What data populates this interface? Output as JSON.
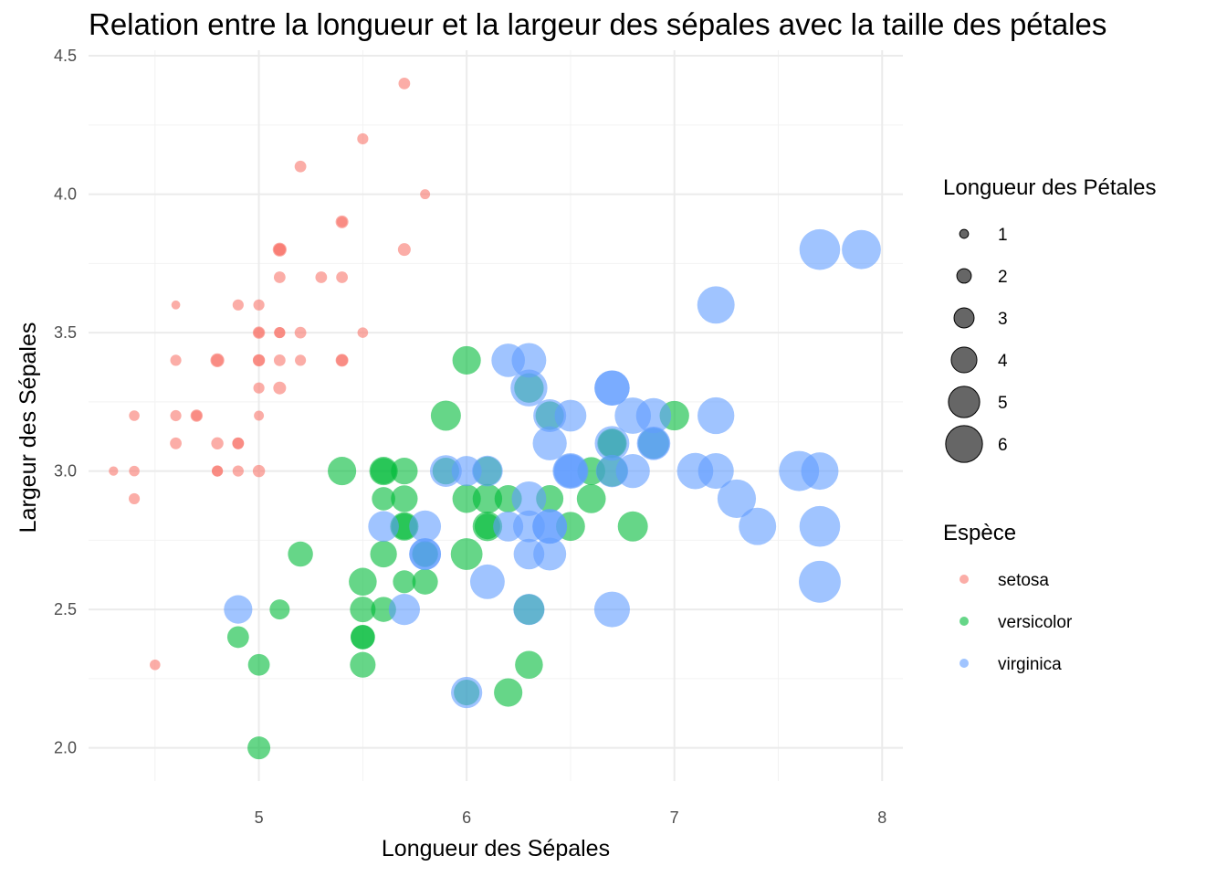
{
  "chart_data": {
    "type": "scatter",
    "title": "Relation entre la longueur et la largeur des sépales avec la taille des pétales",
    "xlabel": "Longueur des Sépales",
    "ylabel": "Largeur des Sépales",
    "xlim": [
      4.18,
      8.1
    ],
    "ylim": [
      1.88,
      4.52
    ],
    "x_ticks": [
      5,
      6,
      7,
      8
    ],
    "y_ticks": [
      2.0,
      2.5,
      3.0,
      3.5,
      4.0,
      4.5
    ],
    "x_tick_labels": [
      "5",
      "6",
      "7",
      "8"
    ],
    "y_tick_labels": [
      "2.0",
      "2.5",
      "3.0",
      "3.5",
      "4.0",
      "4.5"
    ],
    "grid": true,
    "legend_position": "right",
    "size_legend": {
      "title": "Longueur des Pétales",
      "levels": [
        1,
        2,
        3,
        4,
        5,
        6
      ],
      "labels": [
        "1",
        "2",
        "3",
        "4",
        "5",
        "6"
      ]
    },
    "color_legend": {
      "title": "Espèce",
      "entries": [
        "setosa",
        "versicolor",
        "virginica"
      ]
    },
    "colors": {
      "setosa": "#F8766D",
      "versicolor": "#00BA38",
      "virginica": "#619CFF"
    },
    "series": [
      {
        "name": "setosa",
        "points": [
          [
            5.1,
            3.5,
            1.4
          ],
          [
            4.9,
            3.0,
            1.4
          ],
          [
            4.7,
            3.2,
            1.3
          ],
          [
            4.6,
            3.1,
            1.5
          ],
          [
            5.0,
            3.6,
            1.4
          ],
          [
            5.4,
            3.9,
            1.7
          ],
          [
            4.6,
            3.4,
            1.4
          ],
          [
            5.0,
            3.4,
            1.5
          ],
          [
            4.4,
            2.9,
            1.4
          ],
          [
            4.9,
            3.1,
            1.5
          ],
          [
            5.4,
            3.7,
            1.5
          ],
          [
            4.8,
            3.4,
            1.6
          ],
          [
            4.8,
            3.0,
            1.4
          ],
          [
            4.3,
            3.0,
            1.1
          ],
          [
            5.8,
            4.0,
            1.2
          ],
          [
            5.7,
            4.4,
            1.5
          ],
          [
            5.4,
            3.9,
            1.3
          ],
          [
            5.1,
            3.5,
            1.4
          ],
          [
            5.7,
            3.8,
            1.7
          ],
          [
            5.1,
            3.8,
            1.5
          ],
          [
            5.4,
            3.4,
            1.7
          ],
          [
            5.1,
            3.7,
            1.5
          ],
          [
            4.6,
            3.6,
            1.0
          ],
          [
            5.1,
            3.3,
            1.7
          ],
          [
            4.8,
            3.4,
            1.9
          ],
          [
            5.0,
            3.0,
            1.6
          ],
          [
            5.0,
            3.4,
            1.6
          ],
          [
            5.2,
            3.5,
            1.5
          ],
          [
            5.2,
            3.4,
            1.4
          ],
          [
            4.7,
            3.2,
            1.6
          ],
          [
            4.8,
            3.1,
            1.6
          ],
          [
            5.4,
            3.4,
            1.5
          ],
          [
            5.2,
            4.1,
            1.5
          ],
          [
            5.5,
            4.2,
            1.4
          ],
          [
            4.9,
            3.1,
            1.5
          ],
          [
            5.0,
            3.2,
            1.2
          ],
          [
            5.5,
            3.5,
            1.3
          ],
          [
            4.9,
            3.6,
            1.4
          ],
          [
            4.4,
            3.0,
            1.3
          ],
          [
            5.1,
            3.4,
            1.5
          ],
          [
            5.0,
            3.5,
            1.3
          ],
          [
            4.5,
            2.3,
            1.3
          ],
          [
            4.4,
            3.2,
            1.3
          ],
          [
            5.0,
            3.5,
            1.6
          ],
          [
            5.1,
            3.8,
            1.9
          ],
          [
            4.8,
            3.0,
            1.4
          ],
          [
            5.1,
            3.8,
            1.6
          ],
          [
            4.6,
            3.2,
            1.4
          ],
          [
            5.3,
            3.7,
            1.5
          ],
          [
            5.0,
            3.3,
            1.4
          ]
        ]
      },
      {
        "name": "versicolor",
        "points": [
          [
            7.0,
            3.2,
            4.7
          ],
          [
            6.4,
            3.2,
            4.5
          ],
          [
            6.9,
            3.1,
            4.9
          ],
          [
            5.5,
            2.3,
            4.0
          ],
          [
            6.5,
            2.8,
            4.6
          ],
          [
            5.7,
            2.8,
            4.5
          ],
          [
            6.3,
            3.3,
            4.7
          ],
          [
            4.9,
            2.4,
            3.3
          ],
          [
            6.6,
            2.9,
            4.6
          ],
          [
            5.2,
            2.7,
            3.9
          ],
          [
            5.0,
            2.0,
            3.5
          ],
          [
            5.9,
            3.0,
            4.2
          ],
          [
            6.0,
            2.2,
            4.0
          ],
          [
            6.1,
            2.9,
            4.7
          ],
          [
            5.6,
            2.9,
            3.6
          ],
          [
            6.7,
            3.1,
            4.4
          ],
          [
            5.6,
            3.0,
            4.5
          ],
          [
            5.8,
            2.7,
            4.1
          ],
          [
            6.2,
            2.2,
            4.5
          ],
          [
            5.6,
            2.5,
            3.9
          ],
          [
            5.9,
            3.2,
            4.8
          ],
          [
            6.1,
            2.8,
            4.0
          ],
          [
            6.3,
            2.5,
            4.9
          ],
          [
            6.1,
            2.8,
            4.7
          ],
          [
            6.4,
            2.9,
            4.3
          ],
          [
            6.6,
            3.0,
            4.4
          ],
          [
            6.8,
            2.8,
            4.8
          ],
          [
            6.7,
            3.0,
            5.0
          ],
          [
            6.0,
            2.9,
            4.5
          ],
          [
            5.7,
            2.6,
            3.5
          ],
          [
            5.5,
            2.4,
            3.8
          ],
          [
            5.5,
            2.4,
            3.7
          ],
          [
            5.8,
            2.7,
            3.9
          ],
          [
            6.0,
            2.7,
            5.1
          ],
          [
            5.4,
            3.0,
            4.5
          ],
          [
            6.0,
            3.4,
            4.5
          ],
          [
            6.7,
            3.1,
            4.7
          ],
          [
            6.3,
            2.3,
            4.4
          ],
          [
            5.6,
            3.0,
            4.1
          ],
          [
            5.5,
            2.5,
            4.0
          ],
          [
            5.5,
            2.6,
            4.4
          ],
          [
            6.1,
            3.0,
            4.6
          ],
          [
            5.8,
            2.6,
            4.0
          ],
          [
            5.0,
            2.3,
            3.3
          ],
          [
            5.6,
            2.7,
            4.2
          ],
          [
            5.7,
            3.0,
            4.2
          ],
          [
            5.7,
            2.9,
            4.2
          ],
          [
            6.2,
            2.9,
            4.3
          ],
          [
            5.1,
            2.5,
            3.0
          ],
          [
            5.7,
            2.8,
            4.1
          ]
        ]
      },
      {
        "name": "virginica",
        "points": [
          [
            6.3,
            3.3,
            6.0
          ],
          [
            5.8,
            2.7,
            5.1
          ],
          [
            7.1,
            3.0,
            5.9
          ],
          [
            6.3,
            2.9,
            5.6
          ],
          [
            6.5,
            3.0,
            5.8
          ],
          [
            7.6,
            3.0,
            6.6
          ],
          [
            4.9,
            2.5,
            4.5
          ],
          [
            7.3,
            2.9,
            6.3
          ],
          [
            6.7,
            2.5,
            5.8
          ],
          [
            7.2,
            3.6,
            6.1
          ],
          [
            6.5,
            3.2,
            5.1
          ],
          [
            6.4,
            2.7,
            5.3
          ],
          [
            6.8,
            3.0,
            5.5
          ],
          [
            5.7,
            2.5,
            5.0
          ],
          [
            5.8,
            2.8,
            5.1
          ],
          [
            6.4,
            3.2,
            5.3
          ],
          [
            6.5,
            3.0,
            5.5
          ],
          [
            7.7,
            3.8,
            6.7
          ],
          [
            7.7,
            2.6,
            6.9
          ],
          [
            6.0,
            2.2,
            5.0
          ],
          [
            6.9,
            3.2,
            5.7
          ],
          [
            5.6,
            2.8,
            4.9
          ],
          [
            7.7,
            2.8,
            6.7
          ],
          [
            6.3,
            2.7,
            4.9
          ],
          [
            6.7,
            3.3,
            5.7
          ],
          [
            7.2,
            3.2,
            6.0
          ],
          [
            6.2,
            2.8,
            4.8
          ],
          [
            6.1,
            3.0,
            4.9
          ],
          [
            6.4,
            2.8,
            5.6
          ],
          [
            7.2,
            3.0,
            5.8
          ],
          [
            7.4,
            2.8,
            6.1
          ],
          [
            7.9,
            3.8,
            6.4
          ],
          [
            6.4,
            2.8,
            5.6
          ],
          [
            6.3,
            2.8,
            5.1
          ],
          [
            6.1,
            2.6,
            5.6
          ],
          [
            7.7,
            3.0,
            6.1
          ],
          [
            6.3,
            3.4,
            5.6
          ],
          [
            6.4,
            3.1,
            5.5
          ],
          [
            6.0,
            3.0,
            4.8
          ],
          [
            6.9,
            3.1,
            5.4
          ],
          [
            6.7,
            3.1,
            5.6
          ],
          [
            6.9,
            3.1,
            5.1
          ],
          [
            5.8,
            2.7,
            5.1
          ],
          [
            6.8,
            3.2,
            5.9
          ],
          [
            6.7,
            3.3,
            5.7
          ],
          [
            6.7,
            3.0,
            5.2
          ],
          [
            6.3,
            2.5,
            5.0
          ],
          [
            6.5,
            3.0,
            5.2
          ],
          [
            6.2,
            3.4,
            5.4
          ],
          [
            5.9,
            3.0,
            5.1
          ]
        ]
      }
    ]
  }
}
